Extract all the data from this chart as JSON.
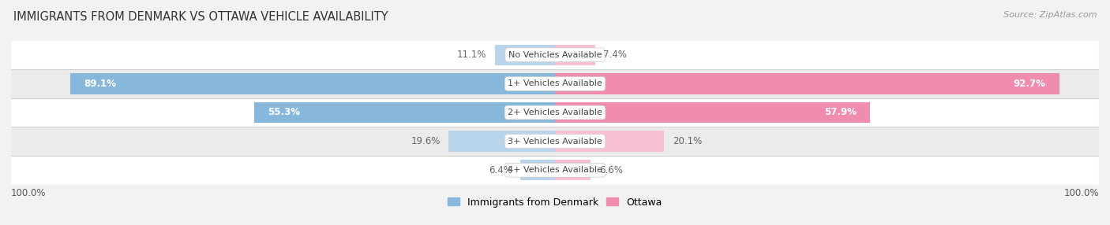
{
  "title": "IMMIGRANTS FROM DENMARK VS OTTAWA VEHICLE AVAILABILITY",
  "source": "Source: ZipAtlas.com",
  "categories": [
    "No Vehicles Available",
    "1+ Vehicles Available",
    "2+ Vehicles Available",
    "3+ Vehicles Available",
    "4+ Vehicles Available"
  ],
  "denmark_values": [
    11.1,
    89.1,
    55.3,
    19.6,
    6.4
  ],
  "ottawa_values": [
    7.4,
    92.7,
    57.9,
    20.1,
    6.6
  ],
  "denmark_color": "#87b8dc",
  "ottawa_color": "#f08cb0",
  "denmark_color_light": "#b8d5ec",
  "ottawa_color_light": "#f9c0d5",
  "bar_height": 0.72,
  "background_color": "#f2f2f2",
  "row_colors": [
    "#ffffff",
    "#ebebeb",
    "#ffffff",
    "#ebebeb",
    "#ffffff"
  ],
  "max_val": 100.0,
  "legend_denmark": "Immigrants from Denmark",
  "legend_ottawa": "Ottawa",
  "axis_label_left": "100.0%",
  "axis_label_right": "100.0%",
  "title_fontsize": 10.5,
  "source_fontsize": 8,
  "label_fontsize": 8.5,
  "cat_fontsize": 8,
  "legend_fontsize": 9
}
